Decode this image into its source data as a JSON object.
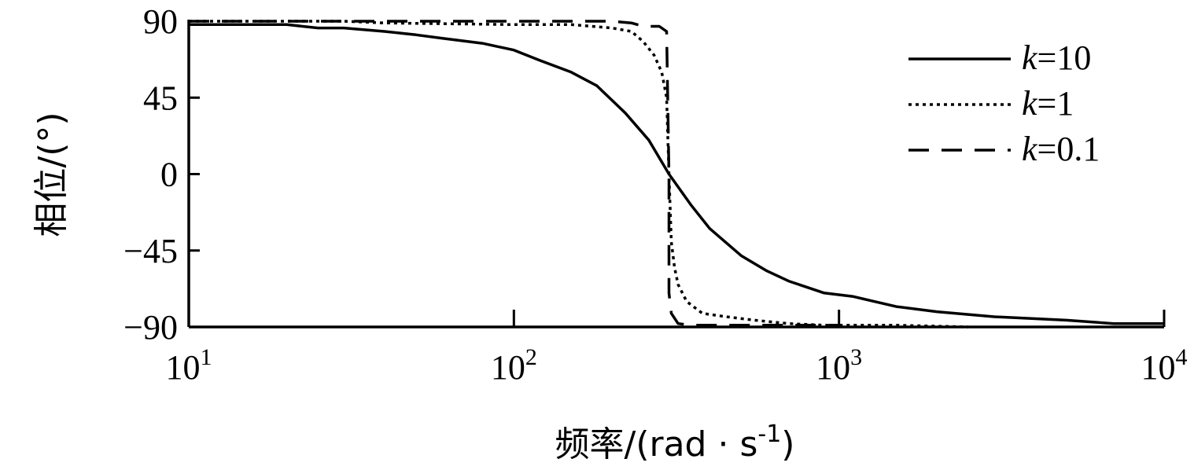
{
  "chart_data": {
    "type": "line",
    "title": "",
    "xlabel": "频率/(rad · s",
    "xlabel_sup": "-1",
    "xlabel_tail": ")",
    "ylabel": "相位/(°)",
    "x_scale": "log",
    "xlim": [
      10,
      10000
    ],
    "ylim": [
      -90,
      90
    ],
    "x_ticks": [
      {
        "value": 10,
        "base": "10",
        "exp": "1"
      },
      {
        "value": 100,
        "base": "10",
        "exp": "2"
      },
      {
        "value": 1000,
        "base": "10",
        "exp": "3"
      },
      {
        "value": 10000,
        "base": "10",
        "exp": "4"
      }
    ],
    "y_ticks": [
      {
        "value": 90,
        "label": "90"
      },
      {
        "value": 45,
        "label": "45"
      },
      {
        "value": 0,
        "label": "0"
      },
      {
        "value": -45,
        "label": "−45"
      },
      {
        "value": -90,
        "label": "−90"
      }
    ],
    "grid": false,
    "legend_position": "top-right",
    "series": [
      {
        "name": "k=10",
        "name_italic": "k",
        "name_rest": "=10",
        "style": "solid",
        "x": [
          10,
          15,
          20,
          25,
          30,
          40,
          50,
          60,
          80,
          100,
          120,
          150,
          180,
          220,
          260,
          300,
          350,
          400,
          500,
          600,
          700,
          900,
          1100,
          1500,
          2000,
          3000,
          5000,
          7000,
          10000
        ],
        "y": [
          88,
          88,
          88,
          86,
          86,
          84,
          82,
          80,
          77,
          73,
          67,
          60,
          52,
          36,
          20,
          0,
          -18,
          -32,
          -48,
          -57,
          -63,
          -70,
          -72,
          -78,
          -81,
          -84,
          -86,
          -88,
          -88
        ]
      },
      {
        "name": "k=1",
        "name_italic": "k",
        "name_rest": "=1",
        "style": "dotted",
        "x": [
          10,
          30,
          40,
          100,
          150,
          200,
          230,
          250,
          270,
          285,
          295,
          300,
          305,
          312,
          320,
          340,
          380,
          450,
          550,
          700,
          900,
          1500,
          2500
        ],
        "y": [
          90,
          90,
          89,
          88,
          88,
          86,
          84,
          78,
          70,
          60,
          45,
          0,
          -40,
          -55,
          -65,
          -75,
          -82,
          -84,
          -86,
          -88,
          -89,
          -89,
          -90
        ]
      },
      {
        "name": "k=0.1",
        "name_italic": "k",
        "name_rest": "=0.1",
        "style": "dashed",
        "x": [
          10,
          200,
          230,
          250,
          280,
          295,
          300,
          300,
          305,
          320,
          350,
          700,
          1000
        ],
        "y": [
          90,
          90,
          89,
          87,
          87,
          84,
          0,
          -70,
          -82,
          -88,
          -89,
          -89,
          -89
        ]
      }
    ]
  }
}
